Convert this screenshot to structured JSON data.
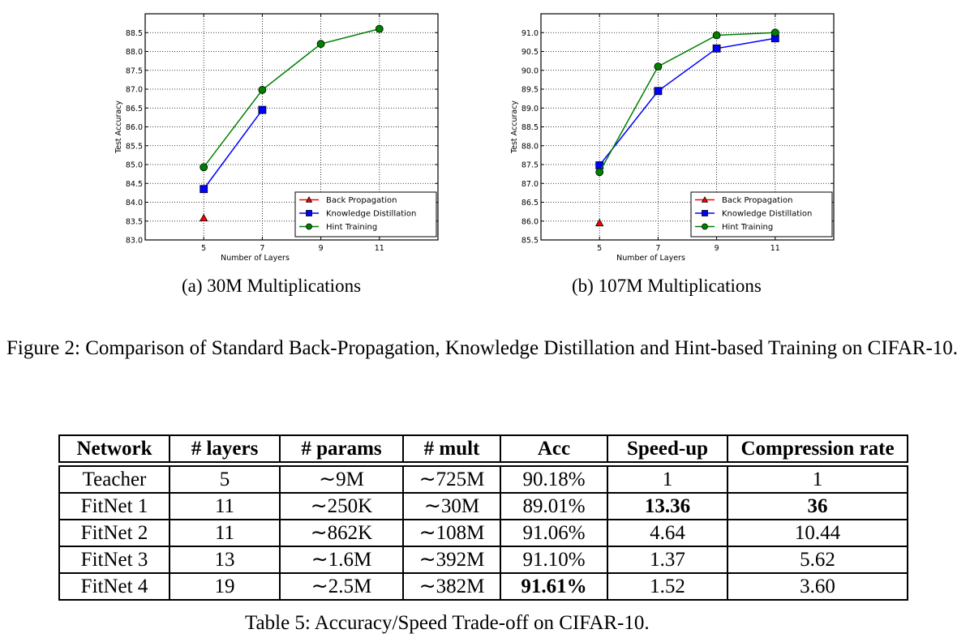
{
  "chart_data": [
    {
      "type": "line",
      "id": "a",
      "title": "",
      "subcaption": "(a) 30M Multiplications",
      "xlabel": "Number of Layers",
      "ylabel": "Test Accuracy",
      "x_ticks": [
        5,
        7,
        9,
        11
      ],
      "xlim": [
        3,
        13
      ],
      "ylim": [
        83.0,
        89.0
      ],
      "y_ticks": [
        83.0,
        83.5,
        84.0,
        84.5,
        85.0,
        85.5,
        86.0,
        86.5,
        87.0,
        87.5,
        88.0,
        88.5
      ],
      "grid": true,
      "legend_position": "lower right",
      "series": [
        {
          "name": "Back Propagation",
          "color": "#ff0000",
          "marker": "triangle",
          "x": [
            5
          ],
          "values": [
            83.58
          ]
        },
        {
          "name": "Knowledge Distillation",
          "color": "#0000ff",
          "marker": "square",
          "x": [
            5,
            7
          ],
          "values": [
            84.35,
            86.45
          ]
        },
        {
          "name": "Hint Training",
          "color": "#007f00",
          "marker": "circle",
          "x": [
            5,
            7,
            9,
            11
          ],
          "values": [
            84.93,
            86.98,
            88.2,
            88.6
          ]
        }
      ]
    },
    {
      "type": "line",
      "id": "b",
      "title": "",
      "subcaption": "(b) 107M Multiplications",
      "xlabel": "Number of Layers",
      "ylabel": "Test Accuracy",
      "x_ticks": [
        5,
        7,
        9,
        11
      ],
      "xlim": [
        3,
        13
      ],
      "ylim": [
        85.5,
        91.5
      ],
      "y_ticks": [
        85.5,
        86.0,
        86.5,
        87.0,
        87.5,
        88.0,
        88.5,
        89.0,
        89.5,
        90.0,
        90.5,
        91.0
      ],
      "grid": true,
      "legend_position": "lower right",
      "series": [
        {
          "name": "Back Propagation",
          "color": "#ff0000",
          "marker": "triangle",
          "x": [
            5
          ],
          "values": [
            85.95
          ]
        },
        {
          "name": "Knowledge Distillation",
          "color": "#0000ff",
          "marker": "square",
          "x": [
            5,
            7,
            9,
            11
          ],
          "values": [
            87.48,
            89.45,
            90.58,
            90.85
          ]
        },
        {
          "name": "Hint Training",
          "color": "#007f00",
          "marker": "circle",
          "x": [
            5,
            7,
            9,
            11
          ],
          "values": [
            87.3,
            90.1,
            90.93,
            91.0
          ]
        }
      ]
    },
    {
      "type": "table",
      "id": "table5",
      "title": "Table 5: Accuracy/Speed Trade-off on CIFAR-10.",
      "columns": [
        "Network",
        "# layers",
        "# params",
        "# mult",
        "Acc",
        "Speed-up",
        "Compression rate"
      ],
      "rows": [
        [
          "Teacher",
          "5",
          "~9M",
          "~725M",
          "90.18%",
          "1",
          "1"
        ],
        [
          "FitNet 1",
          "11",
          "~250K",
          "~30M",
          "89.01%",
          "13.36",
          "36"
        ],
        [
          "FitNet 2",
          "11",
          "~862K",
          "~108M",
          "91.06%",
          "4.64",
          "10.44"
        ],
        [
          "FitNet 3",
          "13",
          "~1.6M",
          "~392M",
          "91.10%",
          "1.37",
          "5.62"
        ],
        [
          "FitNet 4",
          "19",
          "~2.5M",
          "~382M",
          "91.61%",
          "1.52",
          "3.60"
        ]
      ]
    }
  ],
  "figure": {
    "subcaption_a": "(a) 30M Multiplications",
    "subcaption_b": "(b) 107M Multiplications",
    "caption": "Figure 2: Comparison of Standard Back-Propagation, Knowledge Distillation and Hint-based Training on CIFAR-10."
  },
  "table": {
    "caption": "Table 5: Accuracy/Speed Trade-off on CIFAR-10.",
    "headers": [
      "Network",
      "# layers",
      "# params",
      "# mult",
      "Acc",
      "Speed-up",
      "Compression rate"
    ],
    "rows": [
      {
        "network": "Teacher",
        "layers": "5",
        "params": "∼9M",
        "mult": "∼725M",
        "acc": "90.18%",
        "speedup": "1",
        "compression": "1"
      },
      {
        "network": "FitNet 1",
        "layers": "11",
        "params": "∼250K",
        "mult": "∼30M",
        "acc": "89.01%",
        "speedup": "13.36",
        "compression": "36"
      },
      {
        "network": "FitNet 2",
        "layers": "11",
        "params": "∼862K",
        "mult": "∼108M",
        "acc": "91.06%",
        "speedup": "4.64",
        "compression": "10.44"
      },
      {
        "network": "FitNet 3",
        "layers": "13",
        "params": "∼1.6M",
        "mult": "∼392M",
        "acc": "91.10%",
        "speedup": "1.37",
        "compression": "5.62"
      },
      {
        "network": "FitNet 4",
        "layers": "19",
        "params": "∼2.5M",
        "mult": "∼382M",
        "acc": "91.61%",
        "speedup": "1.52",
        "compression": "3.60"
      }
    ],
    "bold_cells": [
      [
        1,
        "speedup"
      ],
      [
        1,
        "compression"
      ],
      [
        4,
        "acc"
      ]
    ]
  }
}
